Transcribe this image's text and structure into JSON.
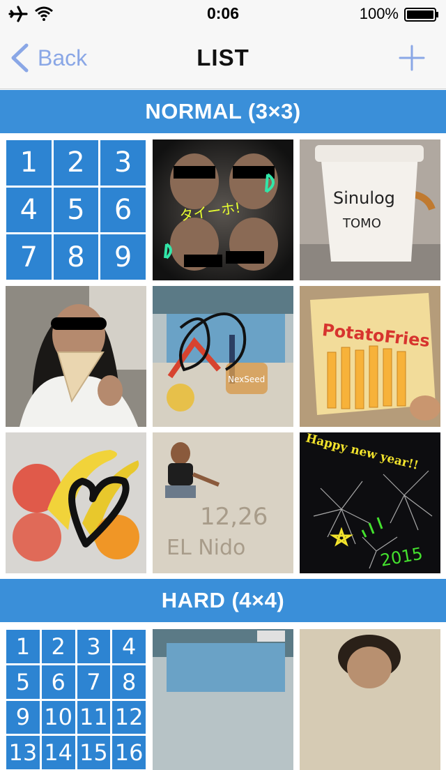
{
  "status_bar": {
    "time": "0:06",
    "battery_percent": "100%",
    "icons": [
      "airplane-icon",
      "wifi-icon",
      "battery-icon"
    ]
  },
  "nav": {
    "back_label": "Back",
    "title": "LIST",
    "add_icon": "plus-icon"
  },
  "sections": [
    {
      "header": "NORMAL (3×3)",
      "numbers": [
        "1",
        "2",
        "3",
        "4",
        "5",
        "6",
        "7",
        "8",
        "9"
      ]
    },
    {
      "header": "HARD (4×4)",
      "numbers": [
        "1",
        "2",
        "3",
        "4",
        "5",
        "6",
        "7",
        "8",
        "9",
        "10",
        "11",
        "12",
        "13",
        "14",
        "15",
        "16"
      ]
    }
  ],
  "photo_text": {
    "p1": "タイーホ!",
    "p3_line1": "Sinulog",
    "p3_line2": "TOMO",
    "p5_badge": "NexSeed",
    "p6": "PotatoFries",
    "p8_line1": "12,26",
    "p8_line2": "EL Nido",
    "p9_line1": "Happy new year!!",
    "p9_line2": "2015"
  },
  "colors": {
    "section_header": "#3a8fd9",
    "number_tile": "#2d84d2",
    "nav_tint": "#8aa7e6"
  }
}
